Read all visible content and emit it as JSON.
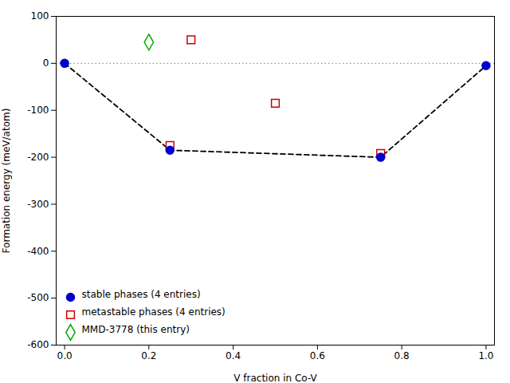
{
  "chart_data": {
    "type": "scatter",
    "xlabel": "V fraction in Co-V",
    "ylabel": "Formation energy (meV/atom)",
    "xlim": [
      -0.02,
      1.02
    ],
    "ylim": [
      -600,
      100
    ],
    "xticks": [
      {
        "value": 0,
        "label": "0.0"
      },
      0.2,
      0.4,
      0.6,
      0.8,
      {
        "value": 1,
        "label": "1.0"
      }
    ],
    "yticks": [
      100,
      0,
      -100,
      -200,
      -300,
      -400,
      -500,
      -600
    ],
    "grid": false,
    "legend": "lower left",
    "series": [
      {
        "type": "rule",
        "color": "gray",
        "line_style": "dotted",
        "values": [
          0
        ]
      },
      {
        "type": "line",
        "color": "black",
        "line_style": "dashed",
        "x": [
          0.0,
          0.25,
          0.75,
          1.0
        ],
        "values": [
          0.0,
          -185.0,
          -200.0,
          -5.0
        ]
      },
      {
        "type": "scatter",
        "name": "stable phases (4 entries)",
        "color": "#0000cc",
        "marker": "circle",
        "x": [
          0.0,
          0.25,
          0.75,
          1.0
        ],
        "values": [
          0.0,
          -185.0,
          -200.0,
          -5.0
        ]
      },
      {
        "type": "scatter",
        "name": "metastable phases (4 entries)",
        "color": "#cc0000",
        "marker": "square-open",
        "x": [
          0.25,
          0.3,
          0.5,
          0.75
        ],
        "values": [
          -175.0,
          50.0,
          -85.0,
          -192.0
        ]
      },
      {
        "type": "scatter",
        "name": "MMD-3778 (this entry)",
        "color": "#00aa00",
        "marker": "diamond-open",
        "x": [
          0.2
        ],
        "values": [
          45.0
        ]
      }
    ]
  }
}
